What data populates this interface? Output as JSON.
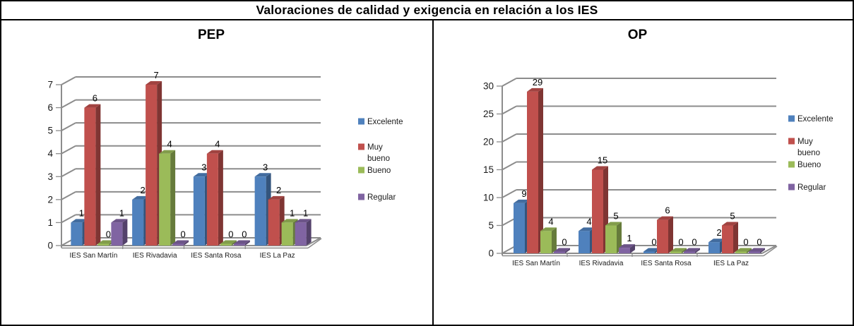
{
  "title": "Valoraciones de calidad y exigencia en relación a los IES",
  "colors": {
    "excelente": "#4F81BD",
    "muy_bueno": "#C0504D",
    "bueno": "#9BBB59",
    "regular": "#8064A2",
    "gridline": "#8C8C8C",
    "text": "#1a1a1a"
  },
  "chart_data": [
    {
      "type": "bar",
      "style": "3d-clustered-column",
      "title": "PEP",
      "categories": [
        "IES San Martín",
        "IES Rivadavia",
        "IES Santa Rosa",
        "IES La Paz"
      ],
      "series": [
        {
          "name": "Excelente",
          "color": "#4F81BD",
          "values": [
            1,
            2,
            3,
            3
          ]
        },
        {
          "name": "Muy bueno",
          "color": "#C0504D",
          "values": [
            6,
            7,
            4,
            2
          ]
        },
        {
          "name": "Bueno",
          "color": "#9BBB59",
          "values": [
            0,
            4,
            0,
            1
          ]
        },
        {
          "name": "Regular",
          "color": "#8064A2",
          "values": [
            1,
            0,
            0,
            1
          ]
        }
      ],
      "xlabel": "",
      "ylabel": "",
      "ylim": [
        0,
        7
      ],
      "ytick_step": 1,
      "grid": true,
      "legend_position": "right",
      "data_labels": true
    },
    {
      "type": "bar",
      "style": "3d-clustered-column",
      "title": "OP",
      "categories": [
        "IES San Martín",
        "IES Rivadavia",
        "IES Santa Rosa",
        "IES La Paz"
      ],
      "series": [
        {
          "name": "Excelente",
          "color": "#4F81BD",
          "values": [
            9,
            4,
            0,
            2
          ]
        },
        {
          "name": "Muy bueno",
          "color": "#C0504D",
          "values": [
            29,
            15,
            6,
            5
          ]
        },
        {
          "name": "Bueno",
          "color": "#9BBB59",
          "values": [
            4,
            5,
            0,
            0
          ]
        },
        {
          "name": "Regular",
          "color": "#8064A2",
          "values": [
            0,
            1,
            0,
            0
          ]
        }
      ],
      "xlabel": "",
      "ylabel": "",
      "ylim": [
        0,
        30
      ],
      "ytick_step": 5,
      "grid": true,
      "legend_position": "right",
      "data_labels": true
    }
  ]
}
